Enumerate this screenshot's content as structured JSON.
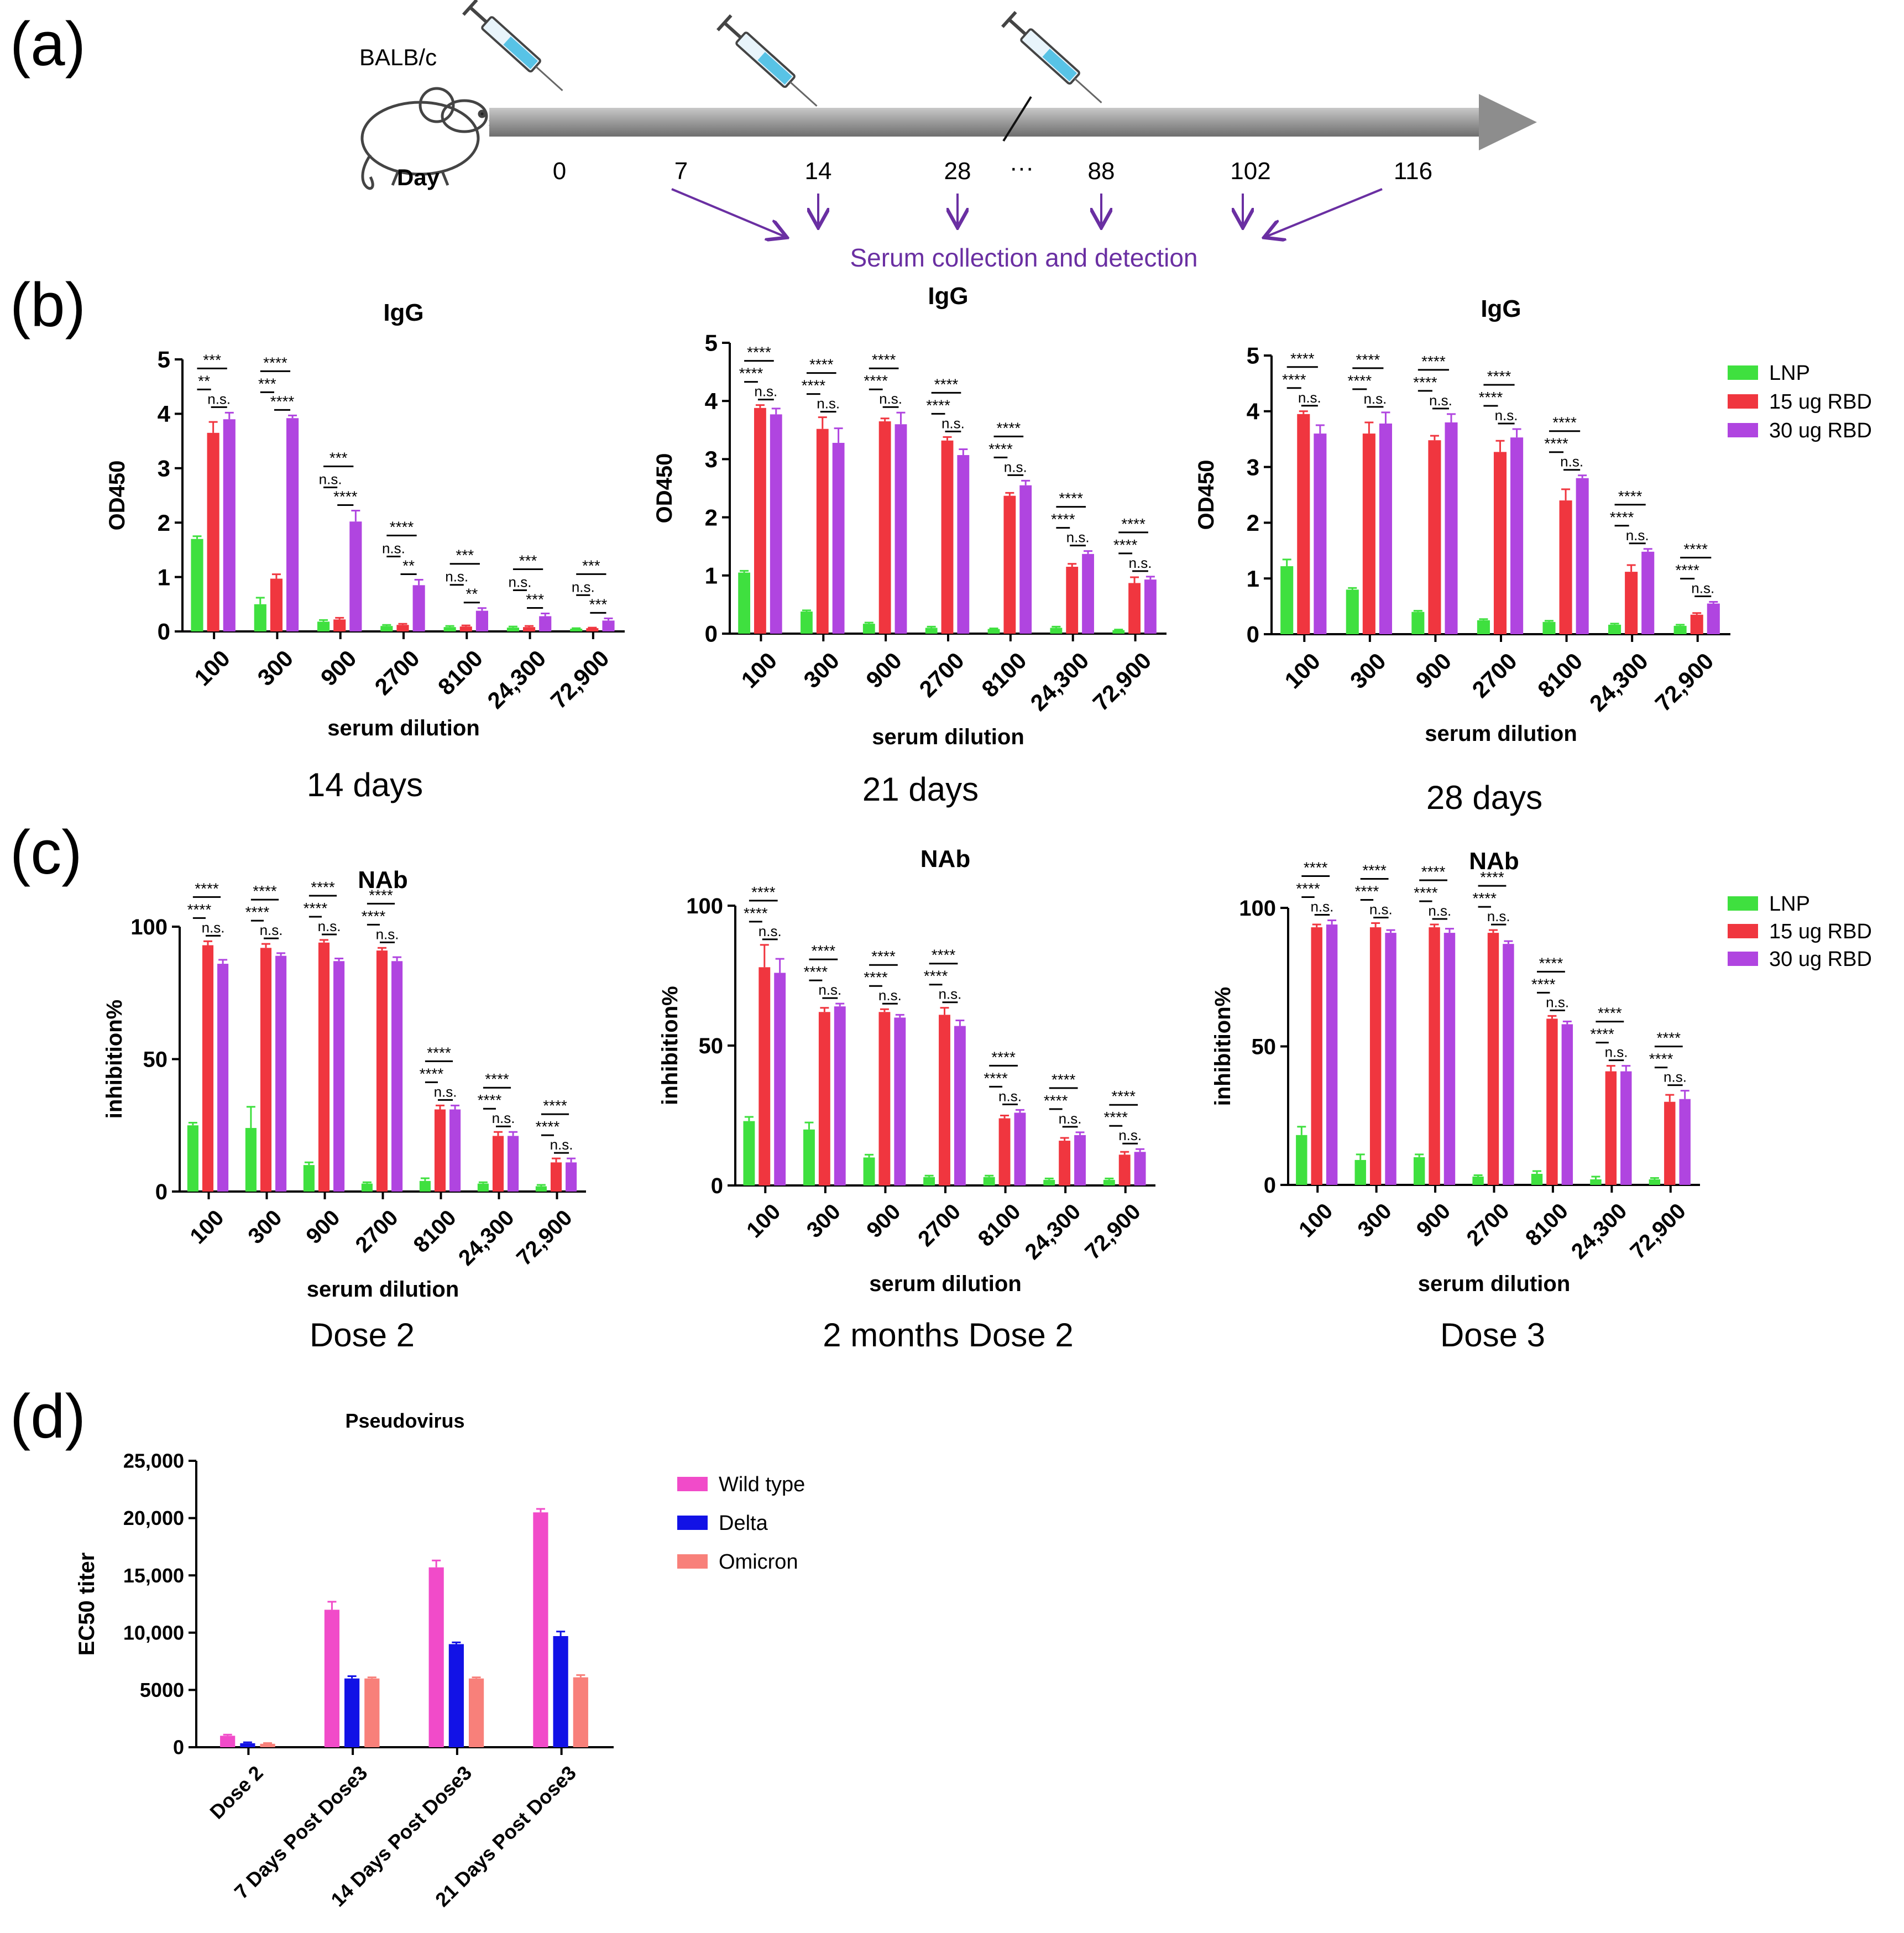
{
  "colors": {
    "lnp": "#3fe03f",
    "rbd15": "#f0363f",
    "rbd30": "#b045e0",
    "wild": "#f14bc9",
    "delta": "#1212e6",
    "omicron": "#f8807a",
    "arrow": "#6a2fa2",
    "bar_grey": "#9a9a9a"
  },
  "panel_a": {
    "label": "(a)",
    "strain": "BALB/c",
    "day_label": "Day",
    "days": [
      "0",
      "7",
      "14",
      "28",
      "88",
      "102",
      "116"
    ],
    "ellipsis": "···",
    "collection_text": "Serum collection and detection",
    "icons": [
      "mouse-icon",
      "syringe-icon",
      "syringe-icon",
      "syringe-icon"
    ]
  },
  "panel_b_label": "(b)",
  "panel_c_label": "(c)",
  "panel_d_label": "(d)",
  "chart_data": [
    {
      "type": "bar",
      "id": "b1",
      "title": "IgG",
      "subtitle": "14 days",
      "xlabel": "serum dilution",
      "ylabel": "OD450",
      "ylim": [
        0,
        5
      ],
      "yticks": [
        "0",
        "1",
        "2",
        "3",
        "4",
        "5"
      ],
      "categories": [
        "100",
        "300",
        "900",
        "2700",
        "8100",
        "24,300",
        "72,900"
      ],
      "series": [
        {
          "name": "LNP",
          "values": [
            1.7,
            0.5,
            0.18,
            0.1,
            0.08,
            0.07,
            0.05
          ],
          "errors": [
            0.05,
            0.12,
            0.03,
            0.02,
            0.02,
            0.02,
            0.01
          ]
        },
        {
          "name": "15 ug RBD",
          "values": [
            3.65,
            0.97,
            0.22,
            0.12,
            0.09,
            0.08,
            0.06
          ],
          "errors": [
            0.2,
            0.08,
            0.03,
            0.02,
            0.02,
            0.02,
            0.01
          ]
        },
        {
          "name": "30 ug RBD",
          "values": [
            3.9,
            3.92,
            2.02,
            0.85,
            0.38,
            0.28,
            0.2
          ],
          "errors": [
            0.12,
            0.05,
            0.2,
            0.1,
            0.05,
            0.05,
            0.04
          ]
        }
      ],
      "sig_groups": [
        [
          "**",
          "***",
          "n.s."
        ],
        [
          "***",
          "****",
          "****"
        ],
        [
          "n.s.",
          "***",
          "****"
        ],
        [
          "n.s.",
          "****",
          "**"
        ],
        [
          "n.s.",
          "***",
          "**"
        ],
        [
          "n.s.",
          "***",
          "***"
        ],
        [
          "n.s.",
          "***",
          "***"
        ]
      ]
    },
    {
      "type": "bar",
      "id": "b2",
      "title": "IgG",
      "subtitle": "21 days",
      "xlabel": "serum dilution",
      "ylabel": "OD450",
      "ylim": [
        0,
        5
      ],
      "yticks": [
        "0",
        "1",
        "2",
        "3",
        "4",
        "5"
      ],
      "categories": [
        "100",
        "300",
        "900",
        "2700",
        "8100",
        "24,300",
        "72,900"
      ],
      "series": [
        {
          "name": "LNP",
          "values": [
            1.05,
            0.38,
            0.17,
            0.1,
            0.08,
            0.1,
            0.06
          ],
          "errors": [
            0.03,
            0.02,
            0.02,
            0.02,
            0.01,
            0.02,
            0.01
          ]
        },
        {
          "name": "15 ug RBD",
          "values": [
            3.88,
            3.52,
            3.65,
            3.32,
            2.37,
            1.15,
            0.87
          ],
          "errors": [
            0.05,
            0.2,
            0.05,
            0.06,
            0.05,
            0.05,
            0.1
          ]
        },
        {
          "name": "30 ug RBD",
          "values": [
            3.77,
            3.28,
            3.6,
            3.07,
            2.55,
            1.37,
            0.93
          ],
          "errors": [
            0.1,
            0.25,
            0.2,
            0.1,
            0.08,
            0.05,
            0.05
          ]
        }
      ],
      "sig_groups": [
        [
          "****",
          "****",
          "n.s."
        ],
        [
          "****",
          "****",
          "n.s."
        ],
        [
          "****",
          "****",
          "n.s."
        ],
        [
          "****",
          "****",
          "n.s."
        ],
        [
          "****",
          "****",
          "n.s."
        ],
        [
          "****",
          "****",
          "n.s."
        ],
        [
          "****",
          "****",
          "n.s."
        ]
      ]
    },
    {
      "type": "bar",
      "id": "b3",
      "title": "IgG",
      "subtitle": "28 days",
      "xlabel": "serum dilution",
      "ylabel": "OD450",
      "ylim": [
        0,
        5
      ],
      "yticks": [
        "0",
        "1",
        "2",
        "3",
        "4",
        "5"
      ],
      "categories": [
        "100",
        "300",
        "900",
        "2700",
        "8100",
        "24,300",
        "72,900"
      ],
      "series": [
        {
          "name": "LNP",
          "values": [
            1.22,
            0.8,
            0.4,
            0.25,
            0.22,
            0.17,
            0.15
          ],
          "errors": [
            0.12,
            0.03,
            0.02,
            0.02,
            0.02,
            0.02,
            0.02
          ]
        },
        {
          "name": "15 ug RBD",
          "values": [
            3.95,
            3.6,
            3.48,
            3.27,
            2.4,
            1.12,
            0.35
          ],
          "errors": [
            0.05,
            0.2,
            0.08,
            0.2,
            0.2,
            0.12,
            0.03
          ]
        },
        {
          "name": "30 ug RBD",
          "values": [
            3.6,
            3.78,
            3.8,
            3.53,
            2.8,
            1.48,
            0.55
          ],
          "errors": [
            0.15,
            0.2,
            0.15,
            0.15,
            0.05,
            0.05,
            0.03
          ]
        }
      ],
      "sig_groups": [
        [
          "****",
          "****",
          "n.s."
        ],
        [
          "****",
          "****",
          "n.s."
        ],
        [
          "****",
          "****",
          "n.s."
        ],
        [
          "****",
          "****",
          "n.s."
        ],
        [
          "****",
          "****",
          "n.s."
        ],
        [
          "****",
          "****",
          "n.s."
        ],
        [
          "****",
          "****",
          "n.s."
        ]
      ],
      "legend": [
        "LNP",
        "15 ug RBD",
        "30 ug RBD"
      ]
    },
    {
      "type": "bar",
      "id": "c1",
      "title": "NAb",
      "subtitle": "Dose 2",
      "xlabel": "serum dilution",
      "ylabel": "inhibition%",
      "ylim": [
        0,
        100
      ],
      "yticks": [
        "0",
        "50",
        "100"
      ],
      "categories": [
        "100",
        "300",
        "900",
        "2700",
        "8100",
        "24,300",
        "72,900"
      ],
      "series": [
        {
          "name": "LNP",
          "values": [
            25,
            24,
            10,
            3,
            4,
            3,
            2
          ],
          "errors": [
            1,
            8,
            1,
            0.5,
            1,
            0.5,
            0.5
          ]
        },
        {
          "name": "15 ug RBD",
          "values": [
            93,
            92,
            94,
            91,
            31,
            21,
            11
          ],
          "errors": [
            1.5,
            1.5,
            1,
            1,
            1.5,
            1.5,
            1.5
          ]
        },
        {
          "name": "30 ug RBD",
          "values": [
            86,
            89,
            87,
            87,
            31,
            21,
            11
          ],
          "errors": [
            1.5,
            1,
            1,
            1.5,
            1.5,
            1.5,
            1.5
          ]
        }
      ],
      "sig_groups": [
        [
          "****",
          "****",
          "n.s."
        ],
        [
          "****",
          "****",
          "n.s."
        ],
        [
          "****",
          "****",
          "n.s."
        ],
        [
          "****",
          "****",
          "n.s."
        ],
        [
          "****",
          "****",
          "n.s."
        ],
        [
          "****",
          "****",
          "n.s."
        ],
        [
          "****",
          "****",
          "n.s."
        ]
      ]
    },
    {
      "type": "bar",
      "id": "c2",
      "title": "NAb",
      "subtitle": "2 months Dose 2",
      "xlabel": "serum dilution",
      "ylabel": "inhibition%",
      "ylim": [
        0,
        100
      ],
      "yticks": [
        "0",
        "50",
        "100"
      ],
      "categories": [
        "100",
        "300",
        "900",
        "2700",
        "8100",
        "24,300",
        "72,900"
      ],
      "series": [
        {
          "name": "LNP",
          "values": [
            23,
            20,
            10,
            3,
            3,
            2,
            2
          ],
          "errors": [
            1.5,
            2.5,
            1,
            0.5,
            0.5,
            0.5,
            0.5
          ]
        },
        {
          "name": "15 ug RBD",
          "values": [
            78,
            62,
            62,
            61,
            24,
            16,
            11
          ],
          "errors": [
            8,
            1.5,
            1,
            2.5,
            1,
            1,
            1
          ]
        },
        {
          "name": "30 ug RBD",
          "values": [
            76,
            64,
            60,
            57,
            26,
            18,
            12
          ],
          "errors": [
            5,
            1,
            1,
            2,
            1,
            1,
            1
          ]
        }
      ],
      "sig_groups": [
        [
          "****",
          "****",
          "n.s."
        ],
        [
          "****",
          "****",
          "n.s."
        ],
        [
          "****",
          "****",
          "n.s."
        ],
        [
          "****",
          "****",
          "n.s."
        ],
        [
          "****",
          "****",
          "n.s."
        ],
        [
          "****",
          "****",
          "n.s."
        ],
        [
          "****",
          "****",
          "n.s."
        ]
      ]
    },
    {
      "type": "bar",
      "id": "c3",
      "title": "NAb",
      "subtitle": "Dose 3",
      "xlabel": "serum dilution",
      "ylabel": "inhibition%",
      "ylim": [
        0,
        100
      ],
      "yticks": [
        "0",
        "50",
        "100"
      ],
      "categories": [
        "100",
        "300",
        "900",
        "2700",
        "8100",
        "24,300",
        "72,900"
      ],
      "series": [
        {
          "name": "LNP",
          "values": [
            18,
            9,
            10,
            3,
            4,
            2,
            2
          ],
          "errors": [
            3,
            2,
            1,
            0.5,
            1,
            1,
            0.5
          ]
        },
        {
          "name": "15 ug RBD",
          "values": [
            93,
            93,
            93,
            91,
            60,
            41,
            30
          ],
          "errors": [
            1,
            1.5,
            1,
            1,
            1,
            2,
            2.5
          ]
        },
        {
          "name": "30 ug RBD",
          "values": [
            94,
            91,
            91,
            87,
            58,
            41,
            31
          ],
          "errors": [
            1.5,
            1,
            1.5,
            1,
            1,
            2,
            3
          ]
        }
      ],
      "sig_groups": [
        [
          "****",
          "****",
          "n.s."
        ],
        [
          "****",
          "****",
          "n.s."
        ],
        [
          "****",
          "****",
          "n.s."
        ],
        [
          "****",
          "****",
          "n.s."
        ],
        [
          "****",
          "****",
          "n.s."
        ],
        [
          "****",
          "****",
          "n.s."
        ],
        [
          "****",
          "****",
          "n.s."
        ]
      ],
      "legend": [
        "LNP",
        "15 ug RBD",
        "30 ug RBD"
      ]
    },
    {
      "type": "bar",
      "id": "d",
      "title": "Pseudovirus",
      "xlabel": "",
      "ylabel": "EC50 titer",
      "ylim": [
        0,
        25000
      ],
      "yticks": [
        "0",
        "5000",
        "10,000",
        "15,000",
        "20,000",
        "25,000"
      ],
      "categories": [
        "Dose 2",
        "7 Days Post Dose3",
        "14 Days Post Dose3",
        "21 Days Post Dose3"
      ],
      "series": [
        {
          "name": "Wild type",
          "values": [
            1000,
            12000,
            15700,
            20500
          ],
          "errors": [
            100,
            700,
            600,
            300
          ]
        },
        {
          "name": "Delta",
          "values": [
            350,
            6000,
            9000,
            9700
          ],
          "errors": [
            80,
            200,
            150,
            400
          ]
        },
        {
          "name": "Omicron",
          "values": [
            300,
            6000,
            6000,
            6100
          ],
          "errors": [
            60,
            100,
            100,
            200
          ]
        }
      ],
      "legend": [
        "Wild type",
        "Delta",
        "Omicron"
      ]
    }
  ]
}
